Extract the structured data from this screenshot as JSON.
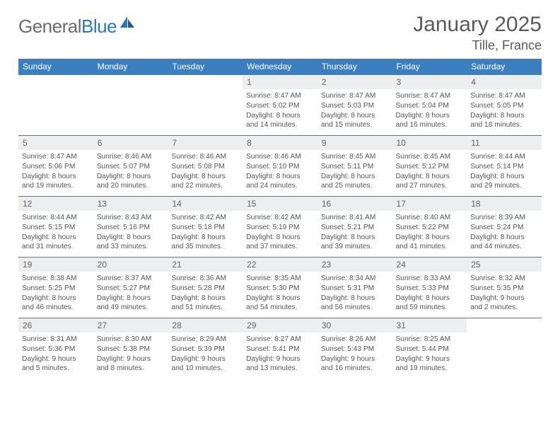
{
  "brand": {
    "part1": "General",
    "part2": "Blue"
  },
  "title": "January 2025",
  "location": "Tille, France",
  "colors": {
    "header_bg": "#3b7fbf",
    "header_text": "#ffffff",
    "daynum_bg": "#eceef0",
    "cell_border": "#3b7fbf",
    "body_text": "#555555",
    "brand_blue": "#2b77bb",
    "brand_gray": "#6b6b6b",
    "page_bg": "#ffffff"
  },
  "weekdays": [
    "Sunday",
    "Monday",
    "Tuesday",
    "Wednesday",
    "Thursday",
    "Friday",
    "Saturday"
  ],
  "weeks": [
    [
      null,
      null,
      null,
      {
        "n": "1",
        "sr": "Sunrise: 8:47 AM",
        "ss": "Sunset: 5:02 PM",
        "dl1": "Daylight: 8 hours",
        "dl2": "and 14 minutes."
      },
      {
        "n": "2",
        "sr": "Sunrise: 8:47 AM",
        "ss": "Sunset: 5:03 PM",
        "dl1": "Daylight: 8 hours",
        "dl2": "and 15 minutes."
      },
      {
        "n": "3",
        "sr": "Sunrise: 8:47 AM",
        "ss": "Sunset: 5:04 PM",
        "dl1": "Daylight: 8 hours",
        "dl2": "and 16 minutes."
      },
      {
        "n": "4",
        "sr": "Sunrise: 8:47 AM",
        "ss": "Sunset: 5:05 PM",
        "dl1": "Daylight: 8 hours",
        "dl2": "and 18 minutes."
      }
    ],
    [
      {
        "n": "5",
        "sr": "Sunrise: 8:47 AM",
        "ss": "Sunset: 5:06 PM",
        "dl1": "Daylight: 8 hours",
        "dl2": "and 19 minutes."
      },
      {
        "n": "6",
        "sr": "Sunrise: 8:46 AM",
        "ss": "Sunset: 5:07 PM",
        "dl1": "Daylight: 8 hours",
        "dl2": "and 20 minutes."
      },
      {
        "n": "7",
        "sr": "Sunrise: 8:46 AM",
        "ss": "Sunset: 5:08 PM",
        "dl1": "Daylight: 8 hours",
        "dl2": "and 22 minutes."
      },
      {
        "n": "8",
        "sr": "Sunrise: 8:46 AM",
        "ss": "Sunset: 5:10 PM",
        "dl1": "Daylight: 8 hours",
        "dl2": "and 24 minutes."
      },
      {
        "n": "9",
        "sr": "Sunrise: 8:45 AM",
        "ss": "Sunset: 5:11 PM",
        "dl1": "Daylight: 8 hours",
        "dl2": "and 25 minutes."
      },
      {
        "n": "10",
        "sr": "Sunrise: 8:45 AM",
        "ss": "Sunset: 5:12 PM",
        "dl1": "Daylight: 8 hours",
        "dl2": "and 27 minutes."
      },
      {
        "n": "11",
        "sr": "Sunrise: 8:44 AM",
        "ss": "Sunset: 5:14 PM",
        "dl1": "Daylight: 8 hours",
        "dl2": "and 29 minutes."
      }
    ],
    [
      {
        "n": "12",
        "sr": "Sunrise: 8:44 AM",
        "ss": "Sunset: 5:15 PM",
        "dl1": "Daylight: 8 hours",
        "dl2": "and 31 minutes."
      },
      {
        "n": "13",
        "sr": "Sunrise: 8:43 AM",
        "ss": "Sunset: 5:16 PM",
        "dl1": "Daylight: 8 hours",
        "dl2": "and 33 minutes."
      },
      {
        "n": "14",
        "sr": "Sunrise: 8:42 AM",
        "ss": "Sunset: 5:18 PM",
        "dl1": "Daylight: 8 hours",
        "dl2": "and 35 minutes."
      },
      {
        "n": "15",
        "sr": "Sunrise: 8:42 AM",
        "ss": "Sunset: 5:19 PM",
        "dl1": "Daylight: 8 hours",
        "dl2": "and 37 minutes."
      },
      {
        "n": "16",
        "sr": "Sunrise: 8:41 AM",
        "ss": "Sunset: 5:21 PM",
        "dl1": "Daylight: 8 hours",
        "dl2": "and 39 minutes."
      },
      {
        "n": "17",
        "sr": "Sunrise: 8:40 AM",
        "ss": "Sunset: 5:22 PM",
        "dl1": "Daylight: 8 hours",
        "dl2": "and 41 minutes."
      },
      {
        "n": "18",
        "sr": "Sunrise: 8:39 AM",
        "ss": "Sunset: 5:24 PM",
        "dl1": "Daylight: 8 hours",
        "dl2": "and 44 minutes."
      }
    ],
    [
      {
        "n": "19",
        "sr": "Sunrise: 8:38 AM",
        "ss": "Sunset: 5:25 PM",
        "dl1": "Daylight: 8 hours",
        "dl2": "and 46 minutes."
      },
      {
        "n": "20",
        "sr": "Sunrise: 8:37 AM",
        "ss": "Sunset: 5:27 PM",
        "dl1": "Daylight: 8 hours",
        "dl2": "and 49 minutes."
      },
      {
        "n": "21",
        "sr": "Sunrise: 8:36 AM",
        "ss": "Sunset: 5:28 PM",
        "dl1": "Daylight: 8 hours",
        "dl2": "and 51 minutes."
      },
      {
        "n": "22",
        "sr": "Sunrise: 8:35 AM",
        "ss": "Sunset: 5:30 PM",
        "dl1": "Daylight: 8 hours",
        "dl2": "and 54 minutes."
      },
      {
        "n": "23",
        "sr": "Sunrise: 8:34 AM",
        "ss": "Sunset: 5:31 PM",
        "dl1": "Daylight: 8 hours",
        "dl2": "and 56 minutes."
      },
      {
        "n": "24",
        "sr": "Sunrise: 8:33 AM",
        "ss": "Sunset: 5:33 PM",
        "dl1": "Daylight: 8 hours",
        "dl2": "and 59 minutes."
      },
      {
        "n": "25",
        "sr": "Sunrise: 8:32 AM",
        "ss": "Sunset: 5:35 PM",
        "dl1": "Daylight: 9 hours",
        "dl2": "and 2 minutes."
      }
    ],
    [
      {
        "n": "26",
        "sr": "Sunrise: 8:31 AM",
        "ss": "Sunset: 5:36 PM",
        "dl1": "Daylight: 9 hours",
        "dl2": "and 5 minutes."
      },
      {
        "n": "27",
        "sr": "Sunrise: 8:30 AM",
        "ss": "Sunset: 5:38 PM",
        "dl1": "Daylight: 9 hours",
        "dl2": "and 8 minutes."
      },
      {
        "n": "28",
        "sr": "Sunrise: 8:29 AM",
        "ss": "Sunset: 5:39 PM",
        "dl1": "Daylight: 9 hours",
        "dl2": "and 10 minutes."
      },
      {
        "n": "29",
        "sr": "Sunrise: 8:27 AM",
        "ss": "Sunset: 5:41 PM",
        "dl1": "Daylight: 9 hours",
        "dl2": "and 13 minutes."
      },
      {
        "n": "30",
        "sr": "Sunrise: 8:26 AM",
        "ss": "Sunset: 5:43 PM",
        "dl1": "Daylight: 9 hours",
        "dl2": "and 16 minutes."
      },
      {
        "n": "31",
        "sr": "Sunrise: 8:25 AM",
        "ss": "Sunset: 5:44 PM",
        "dl1": "Daylight: 9 hours",
        "dl2": "and 19 minutes."
      },
      null
    ]
  ]
}
